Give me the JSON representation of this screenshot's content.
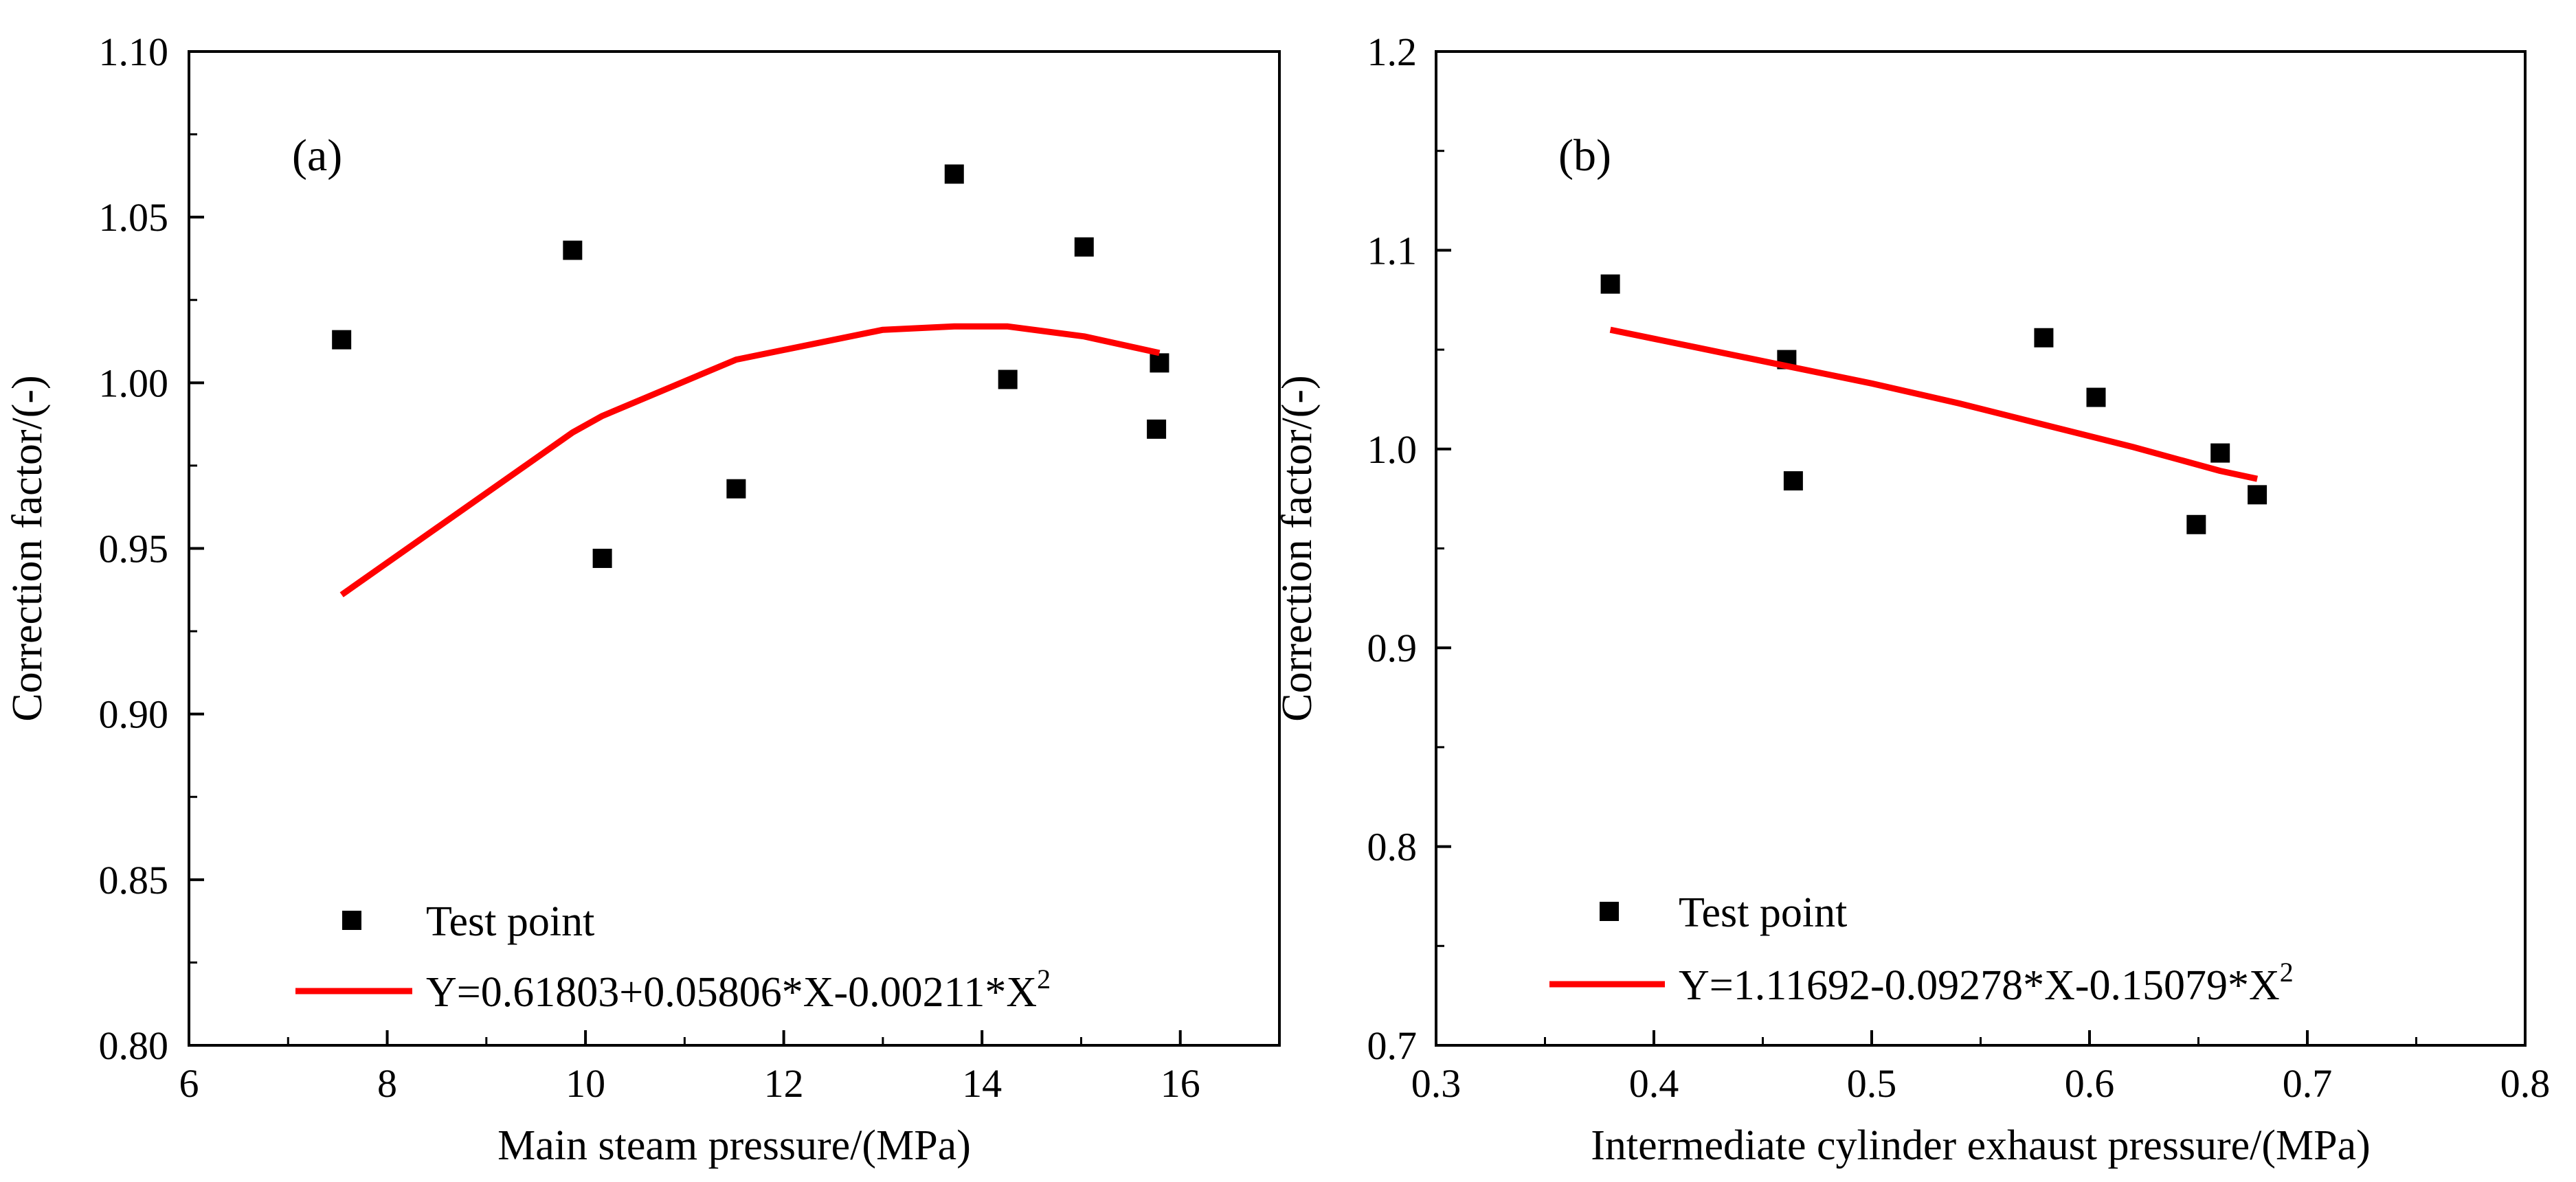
{
  "chart_data": [
    {
      "type": "scatter",
      "panel_label": "(a)",
      "title": "",
      "xlabel": "Main steam pressure/(MPa)",
      "ylabel": "Correction factor/(-)",
      "xlim": [
        6,
        17
      ],
      "ylim": [
        0.8,
        1.1
      ],
      "x_ticks": [
        6,
        8,
        10,
        12,
        14,
        16
      ],
      "x_tick_labels": [
        "6",
        "8",
        "10",
        "12",
        "14",
        "16"
      ],
      "y_ticks": [
        0.8,
        0.85,
        0.9,
        0.95,
        1.0,
        1.05,
        1.1
      ],
      "y_tick_labels": [
        "0.80",
        "0.85",
        "0.90",
        "0.95",
        "1.00",
        "1.05",
        "1.10"
      ],
      "grid": false,
      "legend_position": "bottom-left",
      "series": [
        {
          "name": "Test point",
          "kind": "scatter",
          "marker": "square",
          "color": "#000000",
          "points": [
            [
              7.54,
              1.013
            ],
            [
              9.87,
              1.04
            ],
            [
              10.17,
              0.947
            ],
            [
              11.52,
              0.968
            ],
            [
              13.72,
              1.063
            ],
            [
              14.26,
              1.001
            ],
            [
              15.03,
              1.041
            ],
            [
              15.76,
              0.986
            ],
            [
              15.79,
              1.006
            ]
          ]
        },
        {
          "name": "Y=0.61803+0.05806*X-0.00211*X",
          "name_superscript": "2",
          "kind": "line",
          "color": "#ff0000",
          "points": [
            [
              7.54,
              0.936
            ],
            [
              9.87,
              0.985
            ],
            [
              10.17,
              0.99
            ],
            [
              11.52,
              1.007
            ],
            [
              13.0,
              1.016
            ],
            [
              13.72,
              1.017
            ],
            [
              14.26,
              1.017
            ],
            [
              15.03,
              1.014
            ],
            [
              15.79,
              1.009
            ]
          ]
        }
      ]
    },
    {
      "type": "scatter",
      "panel_label": "(b)",
      "title": "",
      "xlabel": "Intermediate cylinder exhaust pressure/(MPa)",
      "ylabel": "Correction factor/(-)",
      "xlim": [
        0.3,
        0.8
      ],
      "ylim": [
        0.7,
        1.2
      ],
      "x_ticks": [
        0.3,
        0.4,
        0.5,
        0.6,
        0.7,
        0.8
      ],
      "x_tick_labels": [
        "0.3",
        "0.4",
        "0.5",
        "0.6",
        "0.7",
        "0.8"
      ],
      "y_ticks": [
        0.7,
        0.8,
        0.9,
        1.0,
        1.1,
        1.2
      ],
      "y_tick_labels": [
        "0.7",
        "0.8",
        "0.9",
        "1.0",
        "1.1",
        "1.2"
      ],
      "grid": false,
      "legend_position": "bottom-left",
      "series": [
        {
          "name": "Test point",
          "kind": "scatter",
          "marker": "square",
          "color": "#000000",
          "points": [
            [
              0.38,
              1.083
            ],
            [
              0.461,
              1.045
            ],
            [
              0.464,
              0.984
            ],
            [
              0.579,
              1.056
            ],
            [
              0.603,
              1.026
            ],
            [
              0.649,
              0.962
            ],
            [
              0.66,
              0.998
            ],
            [
              0.677,
              0.977
            ]
          ]
        },
        {
          "name": "Y=1.11692-0.09278*X-0.15079*X",
          "name_superscript": "2",
          "kind": "line",
          "color": "#ff0000",
          "points": [
            [
              0.38,
              1.06
            ],
            [
              0.42,
              1.051
            ],
            [
              0.46,
              1.042
            ],
            [
              0.5,
              1.033
            ],
            [
              0.54,
              1.023
            ],
            [
              0.58,
              1.012
            ],
            [
              0.62,
              1.001
            ],
            [
              0.66,
              0.989
            ],
            [
              0.677,
              0.985
            ]
          ]
        }
      ]
    }
  ]
}
